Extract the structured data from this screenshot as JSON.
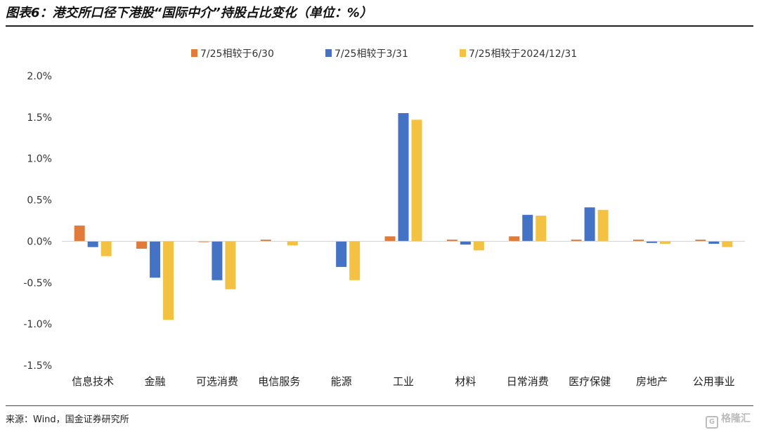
{
  "header": {
    "title": "图表6：港交所口径下港股“国际中介”持股占比变化（单位：%）"
  },
  "footer": {
    "source": "来源：Wind，国金证券研究所",
    "watermark": "格隆汇"
  },
  "chart_data": {
    "type": "bar",
    "title": "",
    "xlabel": "",
    "ylabel": "",
    "ylim": [
      -1.5,
      2.0
    ],
    "yticks": [
      "2.0%",
      "1.5%",
      "1.0%",
      "0.5%",
      "0.0%",
      "-0.5%",
      "-1.0%",
      "-1.5%"
    ],
    "ytick_values": [
      2.0,
      1.5,
      1.0,
      0.5,
      0.0,
      -0.5,
      -1.0,
      -1.5
    ],
    "grid": false,
    "legend_position": "top",
    "categories": [
      "信息技术",
      "金融",
      "可选消费",
      "电信服务",
      "能源",
      "工业",
      "材料",
      "日常消费",
      "医疗保健",
      "房地产",
      "公用事业"
    ],
    "series": [
      {
        "name": "7/25相较于6/30",
        "color": "#E07B39",
        "values": [
          0.19,
          -0.09,
          -0.01,
          0.02,
          0.0,
          0.06,
          0.02,
          0.06,
          0.02,
          0.02,
          0.02
        ]
      },
      {
        "name": "7/25相较于3/31",
        "color": "#4472C4",
        "values": [
          -0.07,
          -0.44,
          -0.47,
          0.0,
          -0.31,
          1.55,
          -0.04,
          0.32,
          0.41,
          -0.02,
          -0.03
        ]
      },
      {
        "name": "7/25相较于2024/12/31",
        "color": "#F4C242",
        "values": [
          -0.18,
          -0.95,
          -0.58,
          -0.05,
          -0.47,
          1.47,
          -0.11,
          0.31,
          0.38,
          -0.03,
          -0.07
        ]
      }
    ]
  }
}
